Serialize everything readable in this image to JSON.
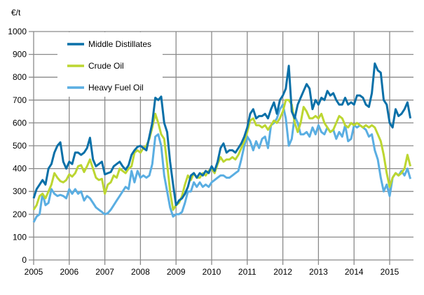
{
  "chart_data": {
    "type": "line",
    "ylabel": "€/t",
    "ylim": [
      0,
      1000
    ],
    "yticks": [
      0,
      100,
      200,
      300,
      400,
      500,
      600,
      700,
      800,
      900,
      1000
    ],
    "xticks": [
      "2005",
      "2006",
      "2007",
      "2008",
      "2009",
      "2010",
      "2011",
      "2012",
      "2013",
      "2014",
      "2015"
    ],
    "x_start": "2005-01",
    "x_frequency": "monthly",
    "grid": true,
    "legend_position": "top-left",
    "series": [
      {
        "name": "Middle Distillates",
        "color": "#0a70a8",
        "values": [
          270,
          310,
          330,
          350,
          330,
          400,
          420,
          470,
          500,
          515,
          430,
          400,
          430,
          420,
          470,
          470,
          460,
          470,
          490,
          535,
          440,
          410,
          420,
          430,
          375,
          380,
          385,
          410,
          420,
          430,
          410,
          395,
          415,
          460,
          480,
          495,
          500,
          490,
          480,
          540,
          600,
          710,
          700,
          715,
          600,
          560,
          430,
          330,
          240,
          260,
          270,
          290,
          320,
          370,
          380,
          360,
          380,
          370,
          390,
          380,
          410,
          390,
          430,
          490,
          510,
          470,
          480,
          480,
          470,
          490,
          510,
          540,
          580,
          640,
          660,
          620,
          630,
          630,
          640,
          620,
          660,
          690,
          640,
          700,
          720,
          750,
          850,
          650,
          620,
          680,
          710,
          740,
          770,
          750,
          660,
          700,
          680,
          710,
          700,
          740,
          720,
          730,
          700,
          680,
          680,
          710,
          680,
          690,
          680,
          720,
          720,
          710,
          680,
          670,
          730,
          860,
          830,
          820,
          700,
          680,
          600,
          580,
          660,
          630,
          640,
          660,
          690,
          620
        ]
      },
      {
        "name": "Crude Oil",
        "color": "#bcd631",
        "values": [
          220,
          240,
          280,
          290,
          270,
          300,
          330,
          380,
          360,
          345,
          340,
          350,
          375,
          365,
          380,
          410,
          415,
          385,
          410,
          440,
          400,
          360,
          350,
          355,
          290,
          330,
          340,
          370,
          360,
          400,
          390,
          380,
          400,
          410,
          470,
          480,
          470,
          490,
          500,
          530,
          580,
          640,
          600,
          550,
          530,
          420,
          300,
          220,
          240,
          250,
          280,
          330,
          370,
          350,
          380,
          360,
          360,
          380,
          370,
          390,
          400,
          380,
          420,
          450,
          430,
          440,
          440,
          450,
          440,
          460,
          490,
          520,
          560,
          610,
          620,
          590,
          590,
          580,
          590,
          570,
          590,
          610,
          600,
          620,
          650,
          700,
          700,
          680,
          600,
          560,
          600,
          670,
          650,
          620,
          620,
          630,
          620,
          640,
          600,
          580,
          560,
          570,
          600,
          630,
          620,
          590,
          580,
          600,
          590,
          600,
          590,
          580,
          590,
          580,
          590,
          580,
          550,
          520,
          460,
          380,
          320,
          360,
          380,
          370,
          380,
          400,
          460,
          410
        ]
      },
      {
        "name": "Heavy Fuel Oil",
        "color": "#5aaee2",
        "values": [
          165,
          190,
          200,
          290,
          240,
          250,
          310,
          290,
          280,
          285,
          280,
          270,
          310,
          290,
          310,
          290,
          300,
          260,
          280,
          270,
          250,
          230,
          220,
          210,
          200,
          205,
          220,
          240,
          260,
          280,
          300,
          320,
          310,
          390,
          340,
          390,
          360,
          370,
          360,
          370,
          420,
          540,
          550,
          500,
          370,
          300,
          230,
          190,
          200,
          200,
          210,
          250,
          300,
          300,
          340,
          320,
          340,
          320,
          330,
          320,
          340,
          350,
          360,
          370,
          370,
          360,
          360,
          370,
          380,
          390,
          440,
          500,
          540,
          520,
          480,
          520,
          490,
          530,
          540,
          490,
          590,
          600,
          620,
          660,
          680,
          620,
          500,
          530,
          630,
          600,
          550,
          550,
          560,
          540,
          580,
          550,
          590,
          560,
          550,
          580,
          560,
          570,
          530,
          560,
          540,
          590,
          520,
          530,
          590,
          580,
          590,
          580,
          570,
          540,
          550,
          480,
          440,
          360,
          300,
          330,
          280,
          360,
          380,
          370,
          390,
          370,
          400,
          355
        ]
      }
    ]
  }
}
